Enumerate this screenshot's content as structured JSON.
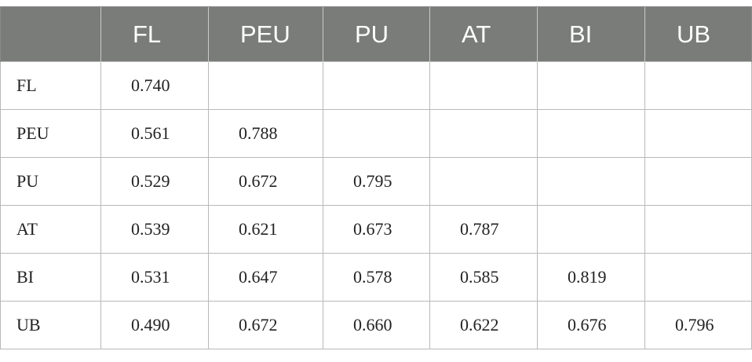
{
  "table": {
    "header": [
      "",
      "FL",
      "PEU",
      "PU",
      "AT",
      "BI",
      "UB"
    ],
    "rows": [
      {
        "label": "FL",
        "cells": [
          "0.740",
          "",
          "",
          "",
          "",
          ""
        ]
      },
      {
        "label": "PEU",
        "cells": [
          "0.561",
          "0.788",
          "",
          "",
          "",
          ""
        ]
      },
      {
        "label": "PU",
        "cells": [
          "0.529",
          "0.672",
          "0.795",
          "",
          "",
          ""
        ]
      },
      {
        "label": "AT",
        "cells": [
          "0.539",
          "0.621",
          "0.673",
          "0.787",
          "",
          ""
        ]
      },
      {
        "label": "BI",
        "cells": [
          "0.531",
          "0.647",
          "0.578",
          "0.585",
          "0.819",
          ""
        ]
      },
      {
        "label": "UB",
        "cells": [
          "0.490",
          "0.672",
          "0.660",
          "0.622",
          "0.676",
          "0.796"
        ]
      }
    ]
  },
  "colors": {
    "header_bg": "#7a7c79",
    "header_text": "#ffffff",
    "grid": "#b9b9b9",
    "body_text": "#222222"
  }
}
